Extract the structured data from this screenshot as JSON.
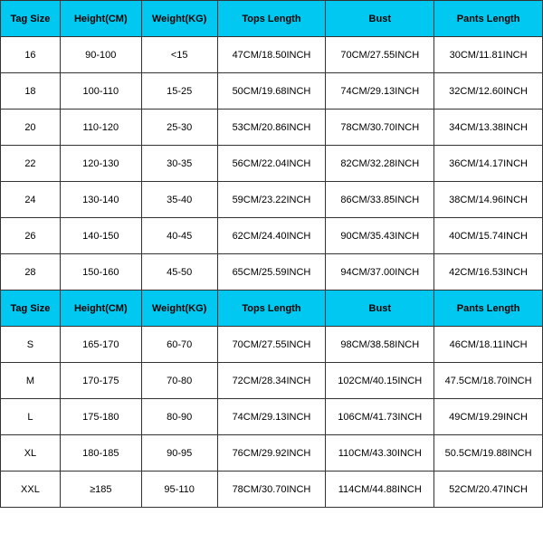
{
  "table": {
    "header_bg": "#00c8f0",
    "cell_bg": "#ffffff",
    "border_color": "#333333",
    "font_size": 11,
    "columns": [
      "Tag Size",
      "Height(CM)",
      "Weight(KG)",
      "Tops Length",
      "Bust",
      "Pants Length"
    ],
    "column_widths": [
      "11%",
      "15%",
      "14%",
      "20%",
      "20%",
      "20%"
    ],
    "sections": [
      {
        "rows": [
          [
            "16",
            "90-100",
            "<15",
            "47CM/18.50INCH",
            "70CM/27.55INCH",
            "30CM/11.81INCH"
          ],
          [
            "18",
            "100-110",
            "15-25",
            "50CM/19.68INCH",
            "74CM/29.13INCH",
            "32CM/12.60INCH"
          ],
          [
            "20",
            "110-120",
            "25-30",
            "53CM/20.86INCH",
            "78CM/30.70INCH",
            "34CM/13.38INCH"
          ],
          [
            "22",
            "120-130",
            "30-35",
            "56CM/22.04INCH",
            "82CM/32.28INCH",
            "36CM/14.17INCH"
          ],
          [
            "24",
            "130-140",
            "35-40",
            "59CM/23.22INCH",
            "86CM/33.85INCH",
            "38CM/14.96INCH"
          ],
          [
            "26",
            "140-150",
            "40-45",
            "62CM/24.40INCH",
            "90CM/35.43INCH",
            "40CM/15.74INCH"
          ],
          [
            "28",
            "150-160",
            "45-50",
            "65CM/25.59INCH",
            "94CM/37.00INCH",
            "42CM/16.53INCH"
          ]
        ]
      },
      {
        "rows": [
          [
            "S",
            "165-170",
            "60-70",
            "70CM/27.55INCH",
            "98CM/38.58INCH",
            "46CM/18.11INCH"
          ],
          [
            "M",
            "170-175",
            "70-80",
            "72CM/28.34INCH",
            "102CM/40.15INCH",
            "47.5CM/18.70INCH"
          ],
          [
            "L",
            "175-180",
            "80-90",
            "74CM/29.13INCH",
            "106CM/41.73INCH",
            "49CM/19.29INCH"
          ],
          [
            "XL",
            "180-185",
            "90-95",
            "76CM/29.92INCH",
            "110CM/43.30INCH",
            "50.5CM/19.88INCH"
          ],
          [
            "XXL",
            "≥185",
            "95-110",
            "78CM/30.70INCH",
            "114CM/44.88INCH",
            "52CM/20.47INCH"
          ]
        ]
      }
    ]
  }
}
